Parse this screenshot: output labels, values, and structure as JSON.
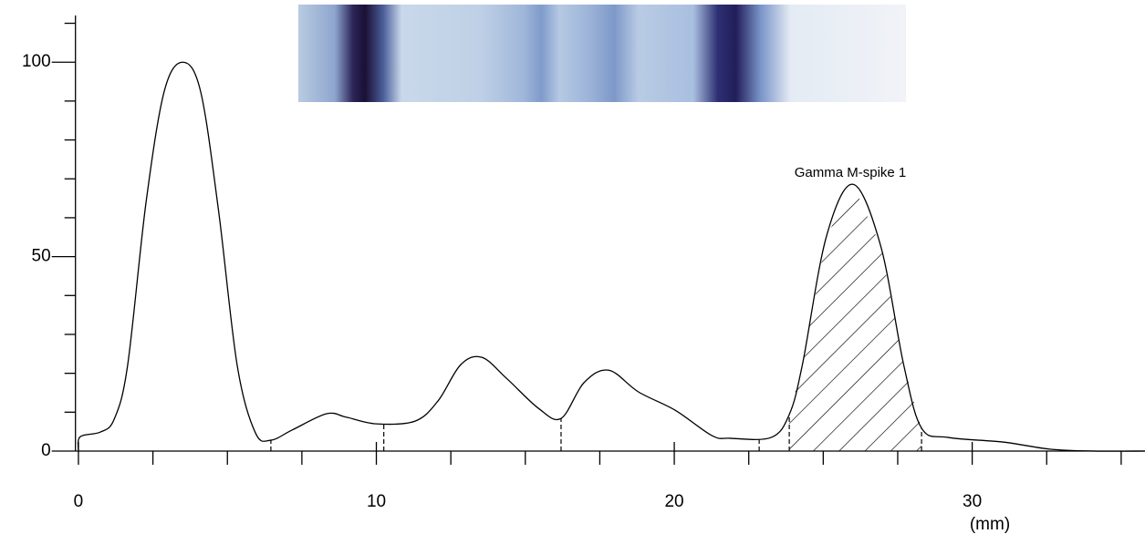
{
  "chart_data": {
    "type": "line",
    "annotation": "Gamma M-spike 1",
    "x_unit_label": "(mm)",
    "x": [
      0,
      0.06,
      0.74,
      1.2,
      1.65,
      2.27,
      2.88,
      3.5,
      4.1,
      4.7,
      5.33,
      5.94,
      6.46,
      7.17,
      8.33,
      9.0,
      10,
      11.3,
      12.07,
      12.83,
      13.54,
      14.37,
      15.44,
      16.2,
      16.97,
      17.8,
      18.8,
      20.03,
      21.26,
      21.87,
      23.25,
      23.86,
      24.3,
      25.1,
      26.0,
      26.93,
      27.7,
      28.3,
      29.2,
      31.06,
      32.6,
      34.1,
      35.8
    ],
    "series": [
      {
        "color": "#000000",
        "values": [
          0,
          3.7,
          4.9,
          8.2,
          22,
          64,
          92.5,
          100,
          92.5,
          62,
          22,
          4.7,
          2.8,
          5.4,
          9.6,
          8.7,
          7,
          7.7,
          12.9,
          22.2,
          24.1,
          18.7,
          11,
          8.4,
          17.6,
          20.8,
          15.2,
          10.5,
          4,
          3.3,
          3.5,
          9.4,
          22.2,
          55,
          68.6,
          52.7,
          22.2,
          5.9,
          3.5,
          2.3,
          0.5,
          0,
          0
        ]
      }
    ],
    "fraction_boundaries": [
      6.46,
      10.25,
      16.2,
      22.85,
      23.86,
      28.3
    ],
    "spike_range": [
      23.86,
      28.3
    ],
    "xlim": [
      -0.1,
      35.8
    ],
    "xticks": [
      0,
      10,
      20,
      30
    ],
    "xticks_minor": [
      2.5,
      5,
      7.5,
      12.5,
      15,
      17.5,
      22.5,
      25,
      27.5,
      32.5,
      35
    ],
    "ylim": [
      0,
      112
    ],
    "yticks": [
      0,
      50,
      100
    ],
    "yticks_minor": [
      10,
      20,
      30,
      40,
      60,
      70,
      80,
      90,
      110
    ]
  }
}
